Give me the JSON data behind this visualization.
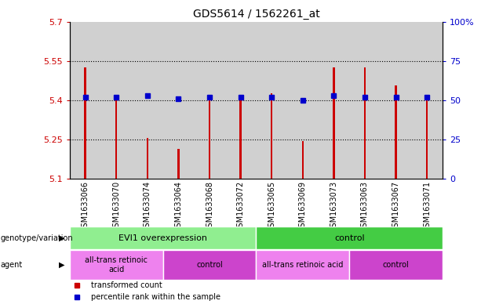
{
  "title": "GDS5614 / 1562261_at",
  "samples": [
    "GSM1633066",
    "GSM1633070",
    "GSM1633074",
    "GSM1633064",
    "GSM1633068",
    "GSM1633072",
    "GSM1633065",
    "GSM1633069",
    "GSM1633073",
    "GSM1633063",
    "GSM1633067",
    "GSM1633071"
  ],
  "red_values": [
    5.525,
    5.415,
    5.255,
    5.215,
    5.415,
    5.415,
    5.425,
    5.245,
    5.525,
    5.525,
    5.455,
    5.415
  ],
  "blue_percentiles": [
    52,
    52,
    53,
    51,
    52,
    52,
    52,
    50,
    53,
    52,
    52,
    52
  ],
  "ylim_left": [
    5.1,
    5.7
  ],
  "ylim_right": [
    0,
    100
  ],
  "yticks_left": [
    5.1,
    5.25,
    5.4,
    5.55,
    5.7
  ],
  "ytick_labels_left": [
    "5.1",
    "5.25",
    "5.4",
    "5.55",
    "5.7"
  ],
  "yticks_right": [
    0,
    25,
    50,
    75,
    100
  ],
  "ytick_labels_right": [
    "0",
    "25",
    "50",
    "75",
    "100%"
  ],
  "hlines": [
    5.25,
    5.4,
    5.55
  ],
  "bar_bottom": 5.1,
  "bar_width": 0.06,
  "red_color": "#cc0000",
  "blue_color": "#0000cc",
  "bg_color": "#d0d0d0",
  "genotype_groups": [
    {
      "label": "EVI1 overexpression",
      "start": 0,
      "end": 6,
      "color": "#90ee90"
    },
    {
      "label": "control",
      "start": 6,
      "end": 12,
      "color": "#44cc44"
    }
  ],
  "agent_groups": [
    {
      "label": "all-trans retinoic\nacid",
      "start": 0,
      "end": 3,
      "color": "#ee82ee"
    },
    {
      "label": "control",
      "start": 3,
      "end": 6,
      "color": "#cc44cc"
    },
    {
      "label": "all-trans retinoic acid",
      "start": 6,
      "end": 9,
      "color": "#ee82ee"
    },
    {
      "label": "control",
      "start": 9,
      "end": 12,
      "color": "#cc44cc"
    }
  ],
  "legend_red": "transformed count",
  "legend_blue": "percentile rank within the sample",
  "left_label_color": "#cc0000",
  "right_label_color": "#0000cc"
}
